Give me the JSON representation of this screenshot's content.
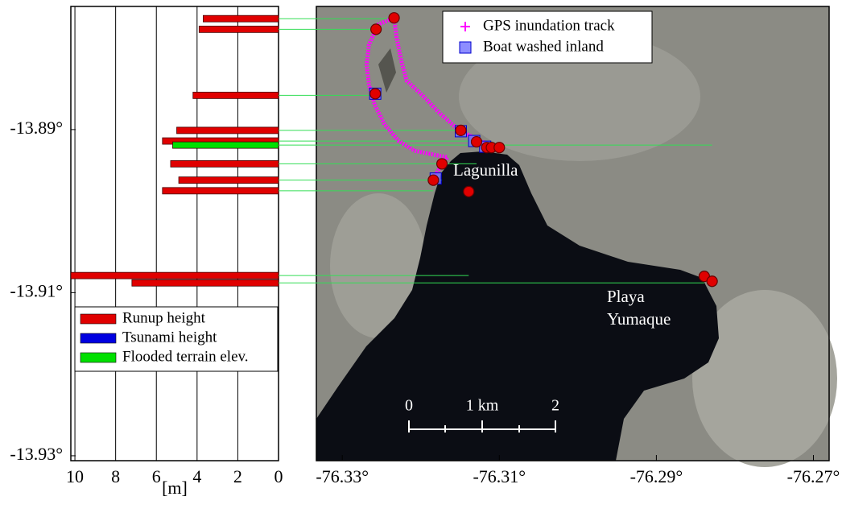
{
  "chart_data": [
    {
      "type": "barh",
      "xlabel": "[m]",
      "xlim": [
        10.2,
        0
      ],
      "xticks": [
        10,
        8,
        6,
        4,
        2,
        0
      ],
      "ylim": [
        -13.9306,
        -13.8749
      ],
      "yticks": [
        {
          "value": -13.89,
          "label": "-13.89°"
        },
        {
          "value": -13.91,
          "label": "-13.91°"
        },
        {
          "value": -13.93,
          "label": "-13.93°"
        }
      ],
      "grid": true,
      "legend": "lower left",
      "y": [
        -13.8764,
        -13.8777,
        -13.8858,
        -13.8901,
        -13.8914,
        -13.8919,
        -13.8942,
        -13.8962,
        -13.8975,
        -13.9079,
        -13.9088
      ],
      "series": [
        {
          "name": "Runup height",
          "color": "#e00000",
          "values": [
            3.7,
            3.9,
            4.2,
            5.0,
            5.7,
            null,
            5.3,
            4.9,
            5.7,
            10.2,
            7.2
          ]
        },
        {
          "name": "Tsunami height",
          "color": "#0000e0",
          "values": [
            null,
            null,
            null,
            null,
            null,
            null,
            null,
            null,
            null,
            null,
            null
          ]
        },
        {
          "name": "Flooded terrain elev.",
          "color": "#00e000",
          "values": [
            null,
            null,
            null,
            null,
            null,
            5.2,
            null,
            null,
            null,
            null,
            null
          ]
        }
      ]
    },
    {
      "type": "map",
      "xlim": [
        -76.3333,
        -76.268
      ],
      "ylim": [
        -13.9306,
        -13.8749
      ],
      "xticks": [
        {
          "value": -76.33,
          "label": "-76.33°"
        },
        {
          "value": -76.31,
          "label": "-76.31°"
        },
        {
          "value": -76.29,
          "label": "-76.29°"
        },
        {
          "value": -76.27,
          "label": "-76.27°"
        }
      ],
      "legend": "upper center",
      "series": [
        {
          "name": "GPS inundation track",
          "color": "#ff00ff",
          "marker": "+",
          "x": [
            -76.31,
            -76.3131,
            -76.3156,
            -76.3177,
            -76.3197,
            -76.3218,
            -76.3225,
            -76.3231,
            -76.3234,
            -76.3254,
            -76.3266,
            -76.3269,
            -76.3266,
            -76.3259,
            -76.3246,
            -76.3228,
            -76.3208,
            -76.3182,
            -76.3166,
            -76.3174,
            -76.3184
          ],
          "y": [
            -13.8924,
            -13.8911,
            -13.8897,
            -13.8879,
            -13.8859,
            -13.884,
            -13.8815,
            -13.8786,
            -13.8763,
            -13.8771,
            -13.8796,
            -13.882,
            -13.8845,
            -13.8869,
            -13.8894,
            -13.8914,
            -13.8926,
            -13.8931,
            -13.8934,
            -13.8944,
            -13.896
          ]
        },
        {
          "name": "Boat washed inland",
          "color": "#7070ff",
          "marker": "square",
          "x": [
            -76.3258,
            -76.3149,
            -76.3132,
            -76.3118,
            -76.3181
          ],
          "y": [
            -13.8856,
            -13.8902,
            -13.8914,
            -13.8921,
            -13.896
          ]
        },
        {
          "color": "#e00000",
          "marker": "circle",
          "x": [
            -76.3234,
            -76.3257,
            -76.3258,
            -76.3149,
            -76.3129,
            -76.3116,
            -76.311,
            -76.31,
            -76.3173,
            -76.3184,
            -76.3139,
            -76.2839,
            -76.2829
          ],
          "y": [
            -13.8763,
            -13.8777,
            -13.8856,
            -13.8901,
            -13.8915,
            -13.8922,
            -13.8922,
            -13.8922,
            -13.8942,
            -13.8962,
            -13.8976,
            -13.908,
            -13.9086
          ]
        }
      ],
      "annotations": [
        "Lagunilla",
        "Playa",
        "Yumaque"
      ],
      "scalebar": [
        "0",
        "1 km",
        "2"
      ]
    }
  ]
}
